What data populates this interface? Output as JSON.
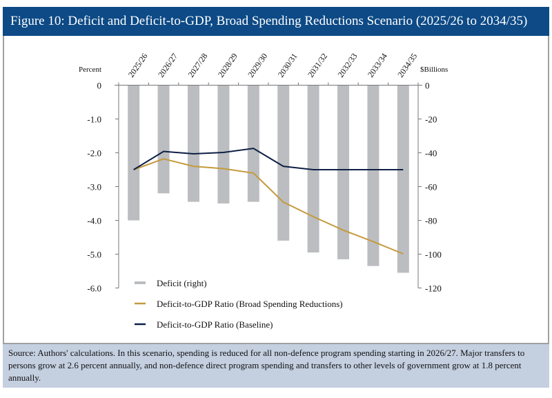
{
  "title": "Figure 10: Deficit and Deficit-to-GDP, Broad Spending Reductions Scenario (2025/26 to 2034/35)",
  "footer": "Source: Authors' calculations. In this scenario, spending is reduced for all non-defence program spending starting in 2026/27. Major transfers to persons grow at 2.6 percent annually, and non-defence direct program spending and transfers to other levels of government grow at 1.8 percent annually.",
  "chart_data": {
    "type": "bar+line",
    "categories": [
      "2025/26",
      "2026/27",
      "2027/28",
      "2028/29",
      "2029/30",
      "2030/31",
      "2031/32",
      "2032/33",
      "2033/34",
      "2034/35"
    ],
    "left_axis": {
      "label": "Percent",
      "range": [
        -6,
        0
      ],
      "ticks": [
        "0",
        "-1.0",
        "-2.0",
        "-3.0",
        "-4.0",
        "-5.0",
        "-6.0"
      ]
    },
    "right_axis": {
      "label": "$Billions",
      "range": [
        -120,
        0
      ],
      "ticks": [
        "0",
        "-20",
        "-40",
        "-60",
        "-80",
        "-100",
        "-120"
      ]
    },
    "series": [
      {
        "name": "Deficit (right)",
        "type": "bar",
        "axis": "right",
        "color": "#bbbdc0",
        "values": [
          -80,
          -64,
          -69,
          -70,
          -69,
          -92,
          -99,
          -103,
          -107,
          -111
        ]
      },
      {
        "name": "Deficit-to-GDP Ratio (Broad Spending Reductions)",
        "type": "line",
        "axis": "left",
        "color": "#c49a3c",
        "values": [
          -2.5,
          -2.18,
          -2.4,
          -2.47,
          -2.6,
          -3.46,
          -3.89,
          -4.29,
          -4.63,
          -4.99
        ]
      },
      {
        "name": "Deficit-to-GDP Ratio (Baseline)",
        "type": "line",
        "axis": "left",
        "color": "#0d1f45",
        "values": [
          -2.5,
          -1.96,
          -2.03,
          -1.99,
          -1.87,
          -2.4,
          -2.5,
          -2.5,
          -2.5,
          -2.5
        ]
      }
    ],
    "legend": "bottom-left",
    "grid": false
  }
}
